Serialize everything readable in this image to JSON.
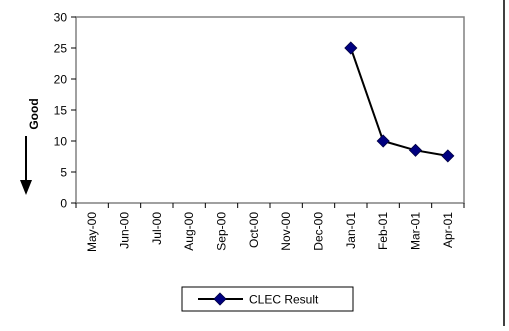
{
  "chart_data": {
    "type": "line",
    "categories": [
      "May-00",
      "Jun-00",
      "Jul-00",
      "Aug-00",
      "Sep-00",
      "Oct-00",
      "Nov-00",
      "Dec-00",
      "Jan-01",
      "Feb-01",
      "Mar-01",
      "Apr-01"
    ],
    "series": [
      {
        "name": "CLEC Result",
        "values": [
          null,
          null,
          null,
          null,
          null,
          null,
          null,
          null,
          25,
          10,
          8.5,
          7.6
        ],
        "color": "#000080",
        "line_color": "#000000",
        "marker": "diamond"
      }
    ],
    "ylabel": "Good",
    "ylim": [
      0,
      30
    ],
    "yticks": [
      0,
      5,
      10,
      15,
      20,
      25,
      30
    ],
    "grid": false,
    "legend_position": "bottom-center",
    "annotation": "down-arrow"
  }
}
